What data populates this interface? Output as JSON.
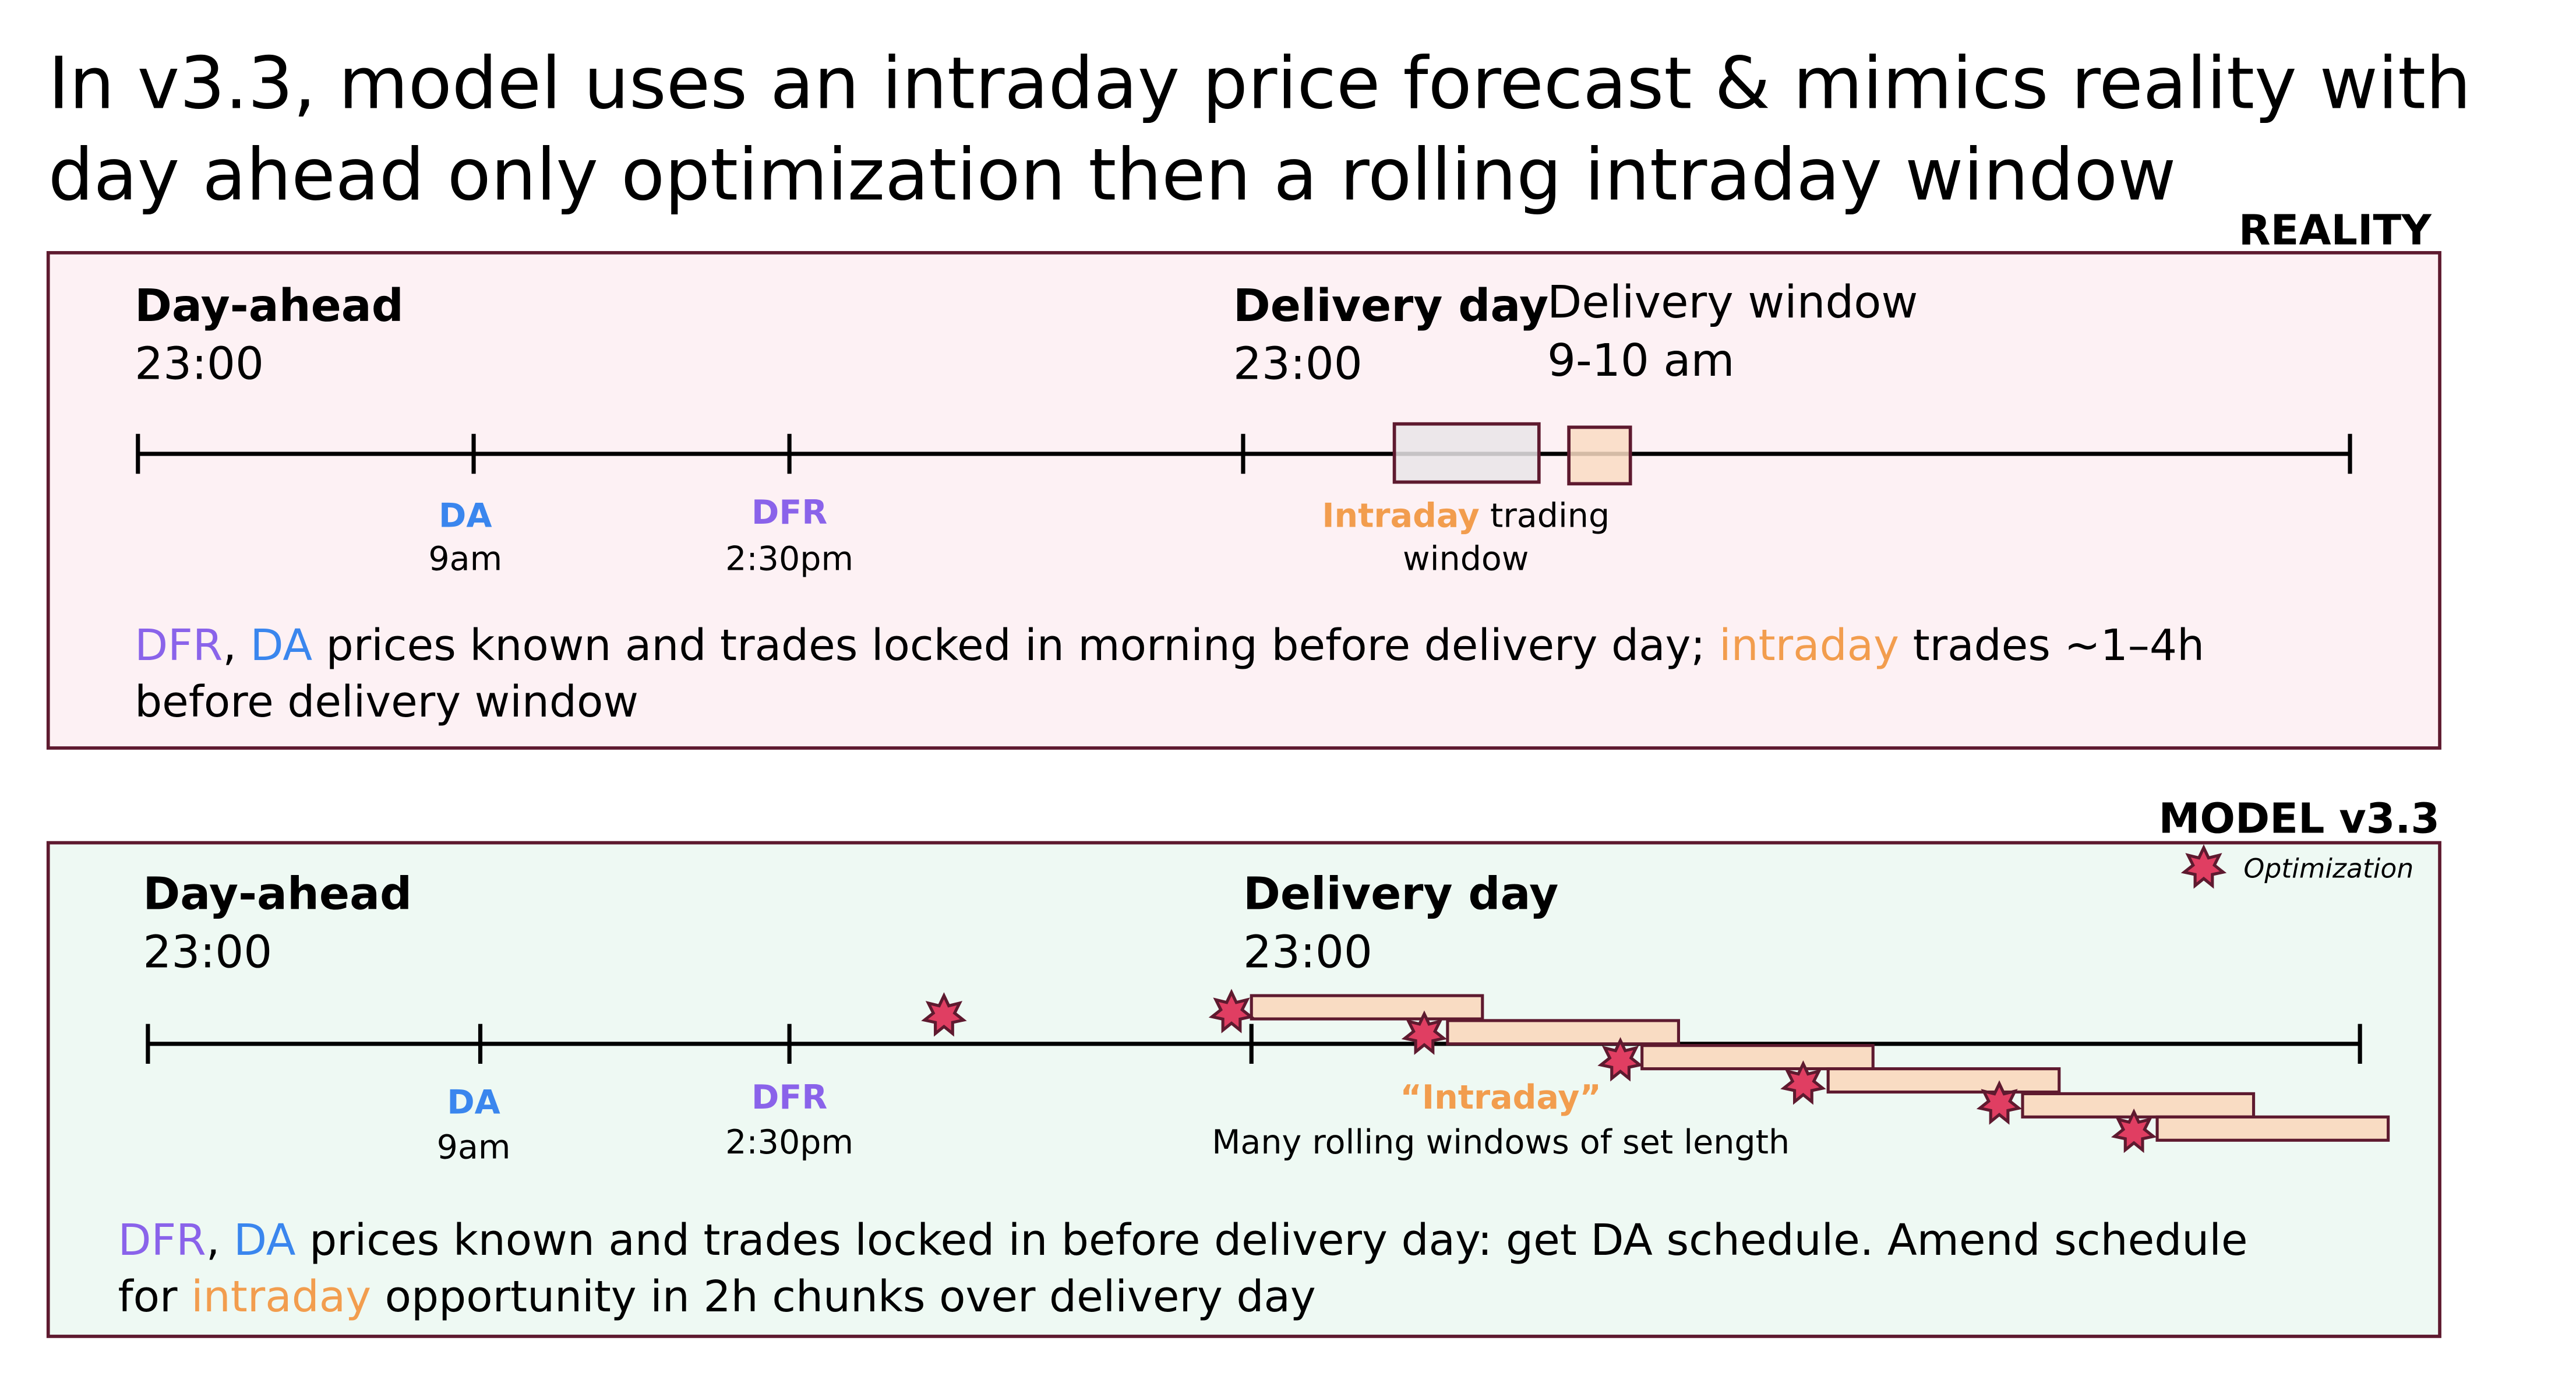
{
  "title": {
    "line1": "In v3.3, model uses an intraday price forecast & mimics reality with",
    "line2": "day ahead only optimization then a rolling intraday window"
  },
  "colors": {
    "dfr": "#8a63ea",
    "da": "#3a86ee",
    "intraday": "#f29d4e",
    "border": "#5e1a2f",
    "reality_bg": "#fdf1f4",
    "model_bg": "#eef9f3",
    "star_fill": "#e03e62",
    "window_fill": "#f9dcc3",
    "grey_fill": "#e9e5e7"
  },
  "reality": {
    "label": "REALITY",
    "day_ahead": "Day-ahead",
    "day_ahead_time": "23:00",
    "delivery_day": "Delivery day",
    "delivery_day_time": "23:00",
    "delivery_window": "Delivery window",
    "delivery_window_time": "9-10 am",
    "da_label": "DA",
    "da_time": "9am",
    "dfr_label": "DFR",
    "dfr_time": "2:30pm",
    "intraday_word": "Intraday",
    "intraday_rest": " trading",
    "intraday_line2": "window",
    "desc": {
      "dfr": "DFR",
      "sep": ", ",
      "da": "DA",
      "mid": " prices known and trades locked in morning before delivery day; ",
      "intraday": "intraday",
      "end": " trades ~1–4h",
      "line2": "before delivery window"
    }
  },
  "model": {
    "label": "MODEL v3.3",
    "legend_label": "Optimization",
    "legend_icon": "optimization-star-icon",
    "day_ahead": "Day-ahead",
    "day_ahead_time": "23:00",
    "delivery_day": "Delivery day",
    "delivery_day_time": "23:00",
    "da_label": "DA",
    "da_time": "9am",
    "dfr_label": "DFR",
    "dfr_time": "2:30pm",
    "intraday_label": "“Intraday”",
    "intraday_desc": "Many rolling windows of set length",
    "desc": {
      "dfr": "DFR",
      "sep": ", ",
      "da": "DA",
      "mid": " prices known and trades locked in before delivery day: get DA schedule. Amend schedule",
      "line2_start": "for ",
      "intraday": "intraday",
      "line2_end": " opportunity in 2h chunks over delivery day"
    }
  }
}
